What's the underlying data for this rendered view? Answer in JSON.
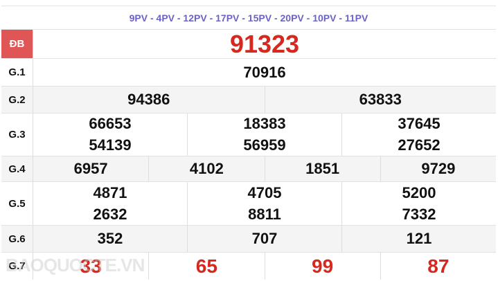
{
  "codes": "9PV - 4PV - 12PV - 17PV - 15PV - 20PV - 10PV - 11PV",
  "watermark": "BAOQUOCTE.VN",
  "colors": {
    "special": "#d6281f",
    "label_bg_special": "#e05555",
    "codes": "#6b63c4"
  },
  "prizes": [
    {
      "label": "ĐB",
      "lines": [
        [
          "91323"
        ]
      ]
    },
    {
      "label": "G.1",
      "lines": [
        [
          "70916"
        ]
      ]
    },
    {
      "label": "G.2",
      "lines": [
        [
          "94386",
          "63833"
        ]
      ]
    },
    {
      "label": "G.3",
      "lines": [
        [
          "66653",
          "18383",
          "37645"
        ],
        [
          "54139",
          "56959",
          "27652"
        ]
      ]
    },
    {
      "label": "G.4",
      "lines": [
        [
          "6957",
          "4102",
          "1851",
          "9729"
        ]
      ]
    },
    {
      "label": "G.5",
      "lines": [
        [
          "4871",
          "4705",
          "5200"
        ],
        [
          "2632",
          "8811",
          "7332"
        ]
      ]
    },
    {
      "label": "G.6",
      "lines": [
        [
          "352",
          "707",
          "121"
        ]
      ]
    },
    {
      "label": "G.7",
      "lines": [
        [
          "33",
          "65",
          "99",
          "87"
        ]
      ]
    }
  ]
}
